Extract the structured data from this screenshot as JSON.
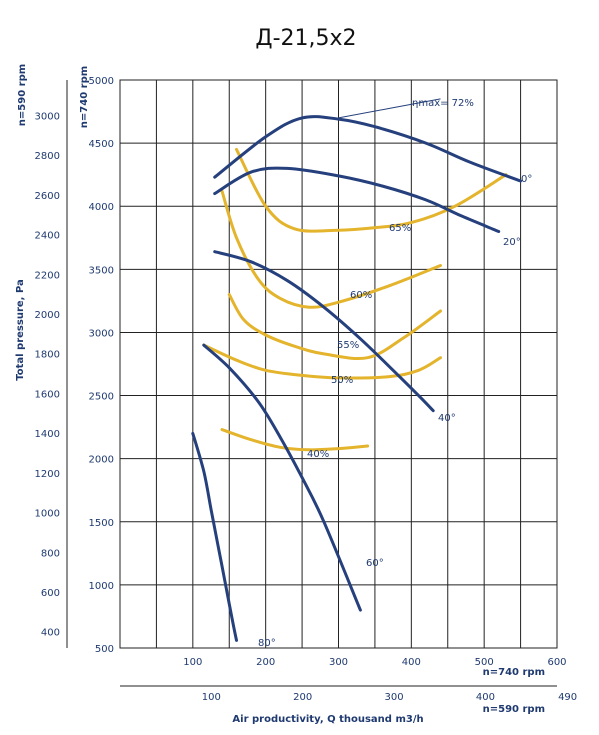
{
  "chart_data": {
    "type": "line",
    "title": "Д-21,5х2",
    "x_axis": {
      "label": "Air productivity, Q thousand m3/h",
      "primary_label": "n=740 rpm",
      "secondary_label": "n=590 rpm",
      "primary_ticks": [
        "100",
        "200",
        "300",
        "400",
        "500",
        "600"
      ],
      "secondary_ticks": [
        "100",
        "200",
        "300",
        "400",
        "490"
      ],
      "range": [
        0,
        600
      ]
    },
    "y_axis": {
      "label": "Total pressure, Pa",
      "primary_label": "n=740 rpm",
      "secondary_label": "n=590 rpm",
      "primary_ticks": [
        "500",
        "1000",
        "1500",
        "2000",
        "2500",
        "3000",
        "3500",
        "4000",
        "4500",
        "5000"
      ],
      "secondary_ticks": [
        "400",
        "600",
        "800",
        "1000",
        "1200",
        "1400",
        "1600",
        "1800",
        "2000",
        "2200",
        "2400",
        "2600",
        "2800",
        "3000"
      ],
      "range": [
        500,
        5000
      ]
    },
    "grid": true,
    "angle_curves": [
      {
        "label": "0°",
        "points": [
          [
            130,
            4230
          ],
          [
            200,
            4550
          ],
          [
            250,
            4700
          ],
          [
            300,
            4690
          ],
          [
            350,
            4630
          ],
          [
            420,
            4500
          ],
          [
            480,
            4350
          ],
          [
            550,
            4200
          ]
        ]
      },
      {
        "label": "20°",
        "points": [
          [
            130,
            4100
          ],
          [
            180,
            4270
          ],
          [
            230,
            4300
          ],
          [
            300,
            4240
          ],
          [
            360,
            4160
          ],
          [
            420,
            4050
          ],
          [
            470,
            3920
          ],
          [
            520,
            3800
          ]
        ]
      },
      {
        "label": "40°",
        "points": [
          [
            130,
            3640
          ],
          [
            180,
            3560
          ],
          [
            230,
            3410
          ],
          [
            280,
            3200
          ],
          [
            330,
            2950
          ],
          [
            375,
            2700
          ],
          [
            410,
            2500
          ],
          [
            430,
            2380
          ]
        ]
      },
      {
        "label": "60°",
        "points": [
          [
            115,
            2900
          ],
          [
            150,
            2720
          ],
          [
            190,
            2450
          ],
          [
            220,
            2170
          ],
          [
            250,
            1850
          ],
          [
            280,
            1500
          ],
          [
            330,
            800
          ]
        ]
      },
      {
        "label": "80°",
        "points": [
          [
            100,
            2200
          ],
          [
            115,
            1900
          ],
          [
            125,
            1600
          ],
          [
            135,
            1300
          ],
          [
            145,
            1000
          ],
          [
            155,
            700
          ],
          [
            160,
            560
          ]
        ]
      }
    ],
    "efficiency_curves": [
      {
        "label": "ηmax= 72%",
        "points": [
          [
            300,
            4700
          ],
          [
            440,
            4850
          ]
        ]
      },
      {
        "label": "65%",
        "points": [
          [
            160,
            4450
          ],
          [
            200,
            4000
          ],
          [
            240,
            3820
          ],
          [
            300,
            3810
          ],
          [
            350,
            3830
          ],
          [
            400,
            3870
          ],
          [
            460,
            4000
          ],
          [
            530,
            4250
          ]
        ]
      },
      {
        "label": "60%",
        "points": [
          [
            140,
            4120
          ],
          [
            160,
            3750
          ],
          [
            190,
            3420
          ],
          [
            220,
            3270
          ],
          [
            260,
            3200
          ],
          [
            300,
            3240
          ],
          [
            370,
            3370
          ],
          [
            440,
            3530
          ]
        ]
      },
      {
        "label": "55%",
        "points": [
          [
            150,
            3300
          ],
          [
            170,
            3100
          ],
          [
            200,
            2980
          ],
          [
            240,
            2890
          ],
          [
            280,
            2830
          ],
          [
            340,
            2800
          ],
          [
            390,
            2960
          ],
          [
            440,
            3170
          ]
        ]
      },
      {
        "label": "50%",
        "points": [
          [
            115,
            2900
          ],
          [
            160,
            2780
          ],
          [
            200,
            2700
          ],
          [
            250,
            2660
          ],
          [
            300,
            2640
          ],
          [
            370,
            2650
          ],
          [
            410,
            2700
          ],
          [
            440,
            2800
          ]
        ]
      },
      {
        "label": "40%",
        "points": [
          [
            140,
            2230
          ],
          [
            180,
            2150
          ],
          [
            220,
            2090
          ],
          [
            260,
            2070
          ],
          [
            300,
            2080
          ],
          [
            340,
            2100
          ]
        ]
      }
    ]
  }
}
